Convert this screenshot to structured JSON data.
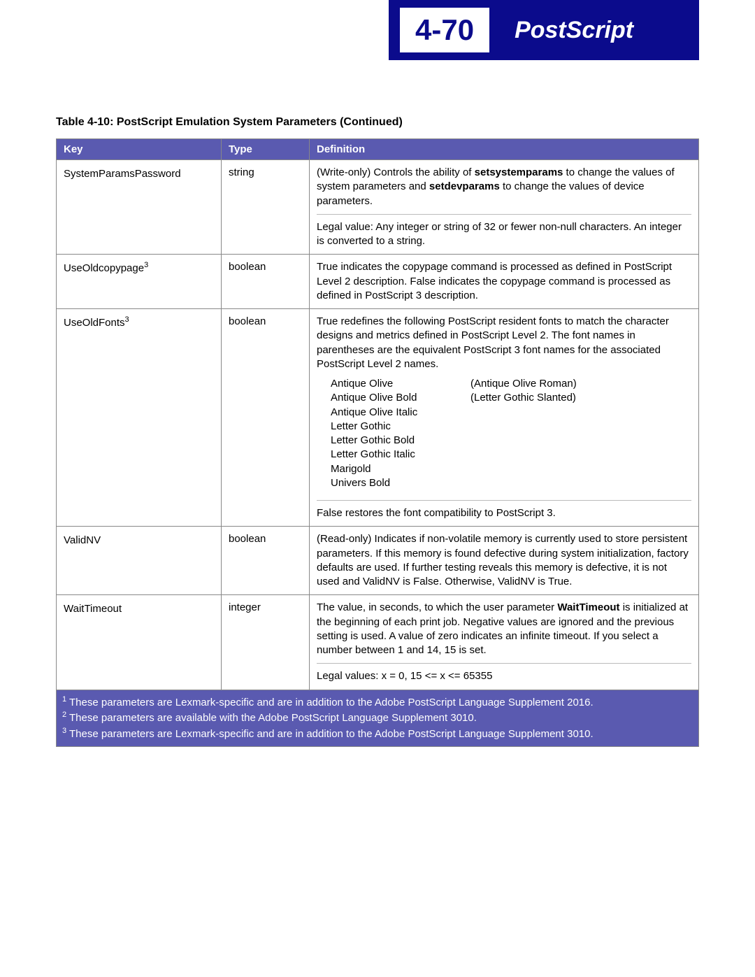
{
  "header": {
    "page_number": "4-70",
    "title": "PostScript",
    "bg_color": "#0b0b8c",
    "text_color": "#ffffff"
  },
  "table": {
    "title": "Table 4-10:   PostScript Emulation System Parameters (Continued)",
    "header_bg": "#5a5ab0",
    "columns": {
      "key": "Key",
      "type": "Type",
      "definition": "Definition"
    },
    "rows": {
      "r1": {
        "key": "SystemParamsPassword",
        "sup": "",
        "type": "string",
        "def1a": "(Write-only) Controls the ability of ",
        "def1b": "setsystemparams",
        "def1c": " to change the values of system parameters and ",
        "def1d": "setdevparams",
        "def1e": " to change the values of device parameters.",
        "def2": "Legal value: Any integer or string of 32 or fewer non-null characters. An integer is converted to a string."
      },
      "r2": {
        "key": "UseOldcopypage",
        "sup": "3",
        "type": "boolean",
        "def": "True indicates the copypage command is processed as defined in PostScript Level 2 description. False indicates the copypage command is processed as defined in PostScript 3 description."
      },
      "r3": {
        "key": "UseOldFonts",
        "sup": "3",
        "type": "boolean",
        "def1": "True redefines the following PostScript resident fonts to match the character designs and metrics defined in PostScript Level 2. The font names in parentheses are the equivalent PostScript 3 font names for the associated PostScript Level 2 names.",
        "fonts_col1": [
          "Antique Olive",
          "Antique Olive Bold",
          "Antique Olive Italic",
          "Letter Gothic",
          "Letter Gothic Bold",
          "Letter Gothic Italic",
          "Marigold",
          "Univers Bold"
        ],
        "fonts_col2": [
          "(Antique Olive Roman)",
          "",
          "",
          "",
          "",
          "(Letter Gothic Slanted)",
          "",
          ""
        ],
        "def2": "False restores the font compatibility to PostScript 3."
      },
      "r4": {
        "key": "ValidNV",
        "sup": "",
        "type": "boolean",
        "def": "(Read-only) Indicates if non-volatile memory is currently used to store persistent parameters. If this memory is found defective during system initialization, factory defaults are used. If further testing reveals this memory is defective, it is not used and ValidNV is False. Otherwise, ValidNV is True."
      },
      "r5": {
        "key": "WaitTimeout",
        "sup": "",
        "type": "integer",
        "def1a": "The value, in seconds, to which the user parameter ",
        "def1b": "WaitTimeout",
        "def1c": " is initialized at the beginning of each print job. Negative values are ignored and the previous setting is used. A value of zero indicates an infinite timeout. If you select a number between 1 and 14, 15 is set.",
        "def2": "Legal values: x = 0, 15 <= x <= 65355"
      }
    },
    "footnotes": {
      "f1": " These parameters are Lexmark-specific and are in addition to the Adobe PostScript Language Supplement 2016.",
      "f2": " These parameters are available with the Adobe PostScript Language Supplement 3010.",
      "f3": " These parameters are Lexmark-specific and are in addition to the Adobe PostScript Language Supplement 3010."
    }
  }
}
